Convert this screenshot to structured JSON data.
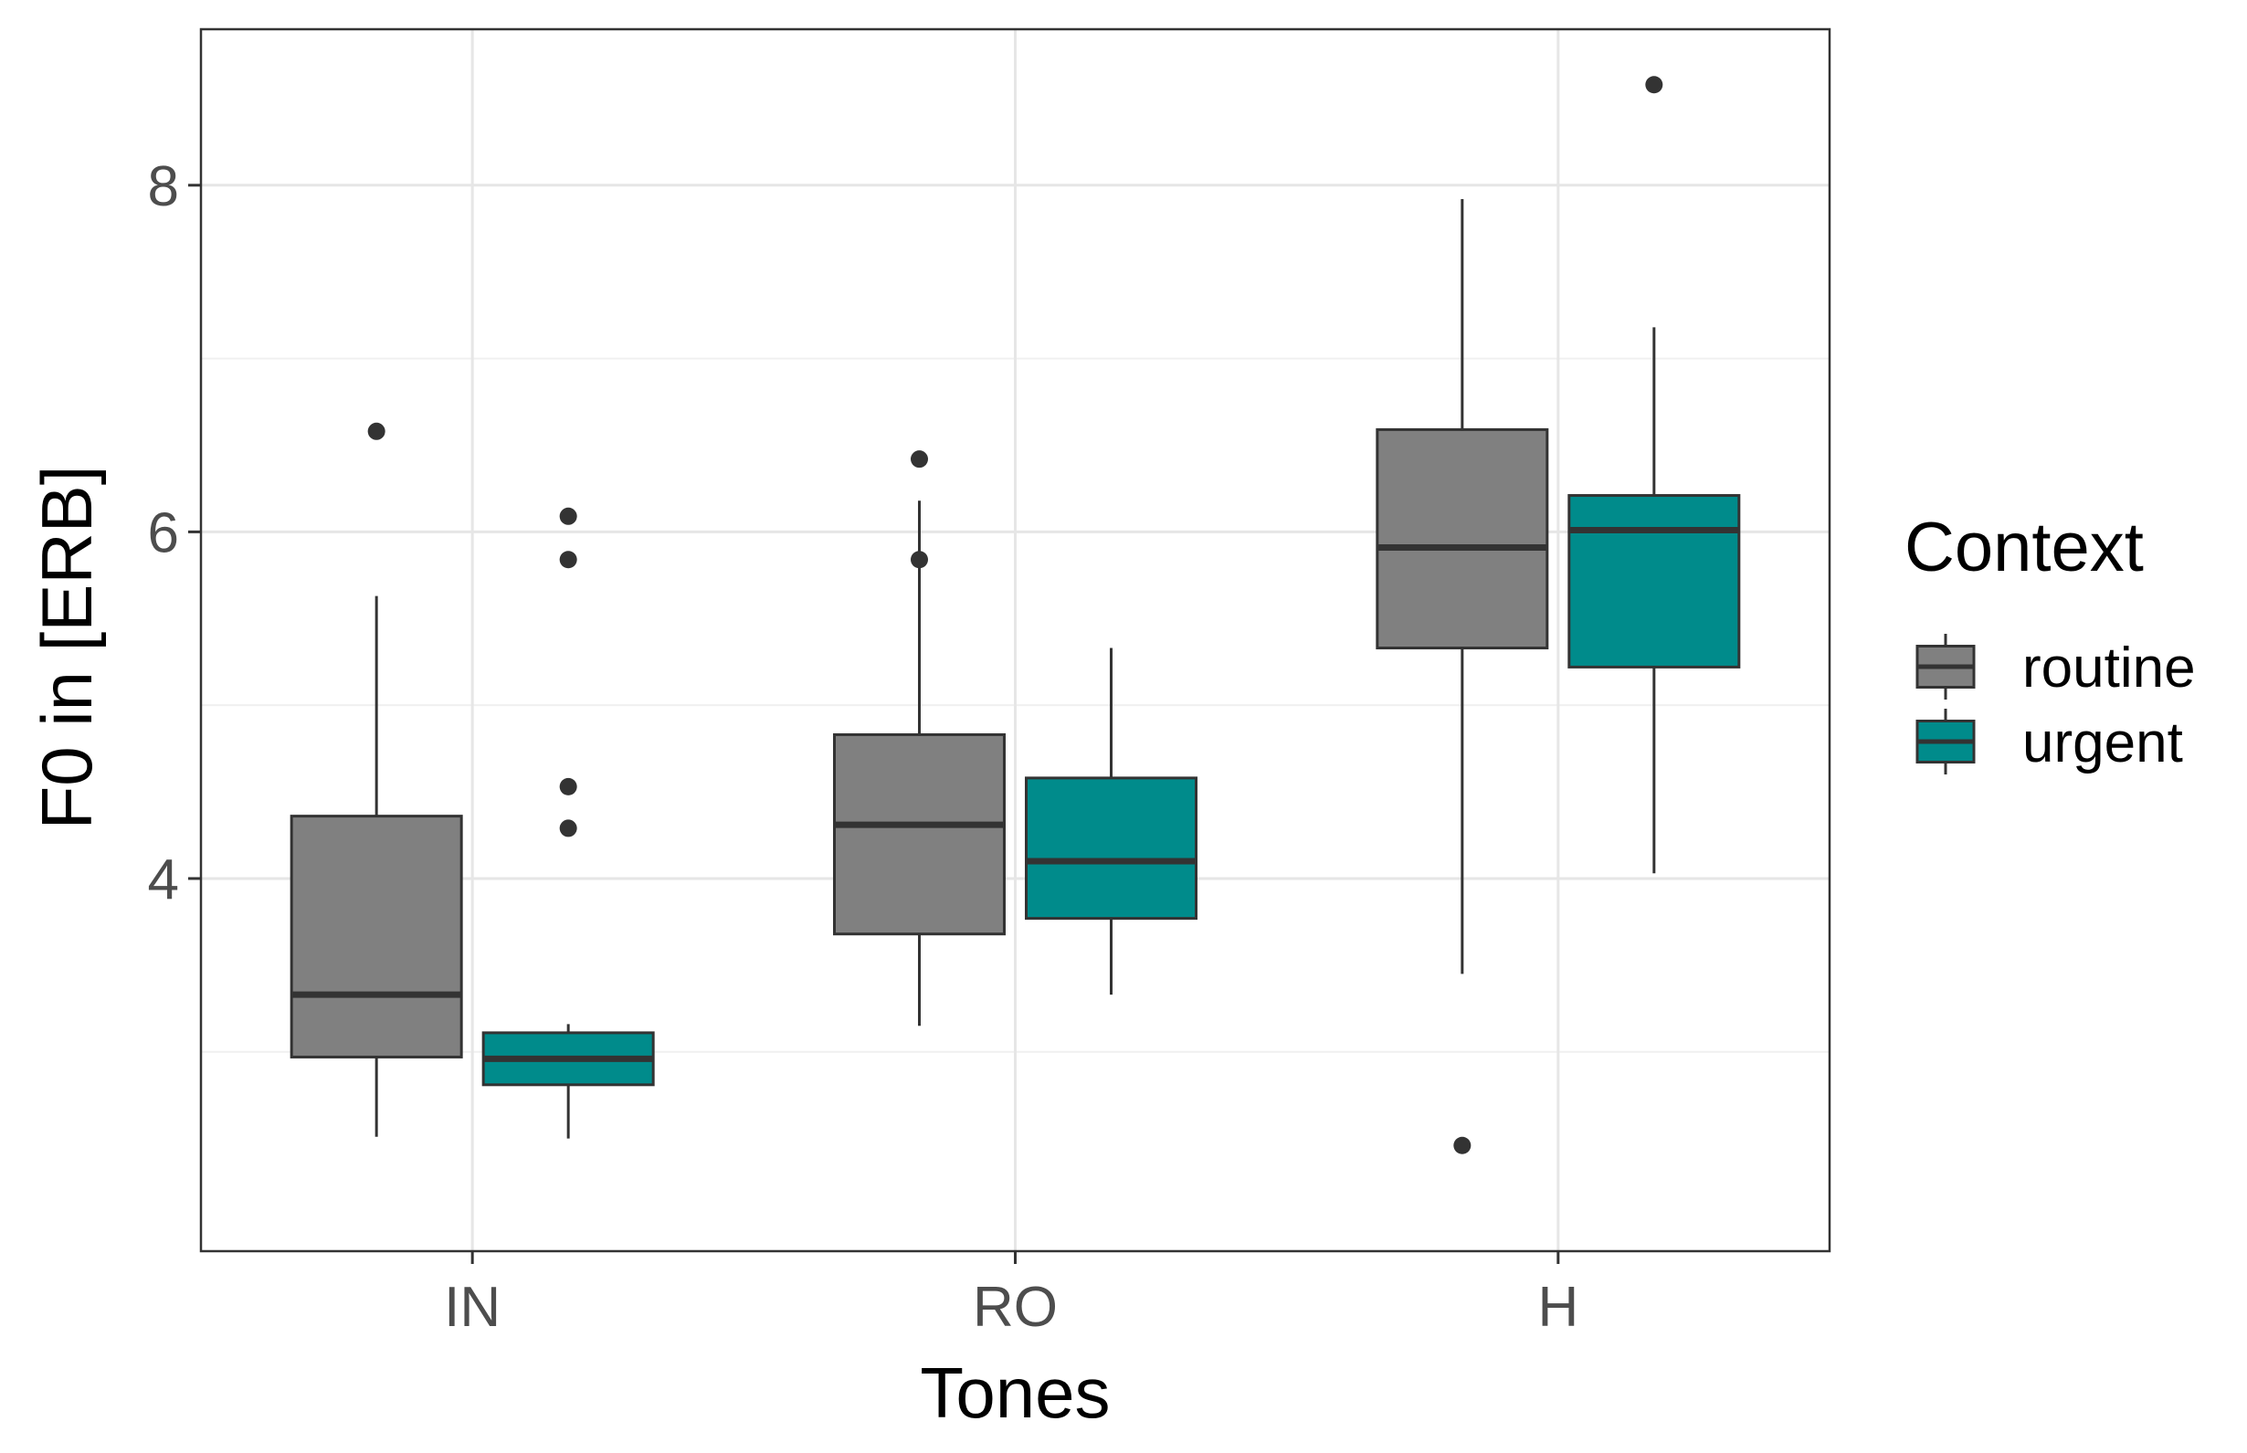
{
  "chart_data": {
    "type": "boxplot",
    "title": "",
    "xlabel": "Tones",
    "ylabel": "F0 in [ERB]",
    "categories": [
      "IN",
      "RO",
      "H"
    ],
    "ylim": [
      1.85,
      8.9
    ],
    "yticks": [
      4,
      6,
      8
    ],
    "ytick_labels": [
      "4",
      "6",
      "8"
    ],
    "grid": true,
    "legend": {
      "title": "Context",
      "position": "right",
      "entries": [
        "routine",
        "urgent"
      ]
    },
    "series": [
      {
        "name": "routine",
        "color": "#808080",
        "boxes": [
          {
            "category": "IN",
            "whisker_low": 2.51,
            "q1": 2.97,
            "median": 3.33,
            "q3": 4.36,
            "whisker_high": 5.63,
            "outliers": [
              6.58
            ]
          },
          {
            "category": "RO",
            "whisker_low": 3.15,
            "q1": 3.68,
            "median": 4.31,
            "q3": 4.83,
            "whisker_high": 6.18,
            "outliers": [
              6.42,
              5.84
            ]
          },
          {
            "category": "H",
            "whisker_low": 3.45,
            "q1": 5.33,
            "median": 5.91,
            "q3": 6.59,
            "whisker_high": 7.92,
            "outliers": [
              2.46
            ]
          }
        ]
      },
      {
        "name": "urgent",
        "color": "#008B8B",
        "boxes": [
          {
            "category": "IN",
            "whisker_low": 2.5,
            "q1": 2.81,
            "median": 2.96,
            "q3": 3.11,
            "whisker_high": 3.16,
            "outliers": [
              6.09,
              5.84,
              4.53,
              4.29
            ]
          },
          {
            "category": "RO",
            "whisker_low": 3.33,
            "q1": 3.77,
            "median": 4.1,
            "q3": 4.58,
            "whisker_high": 5.33,
            "outliers": []
          },
          {
            "category": "H",
            "whisker_low": 4.03,
            "q1": 5.22,
            "median": 6.01,
            "q3": 6.21,
            "whisker_high": 7.18,
            "outliers": [
              8.58
            ]
          }
        ]
      }
    ]
  }
}
